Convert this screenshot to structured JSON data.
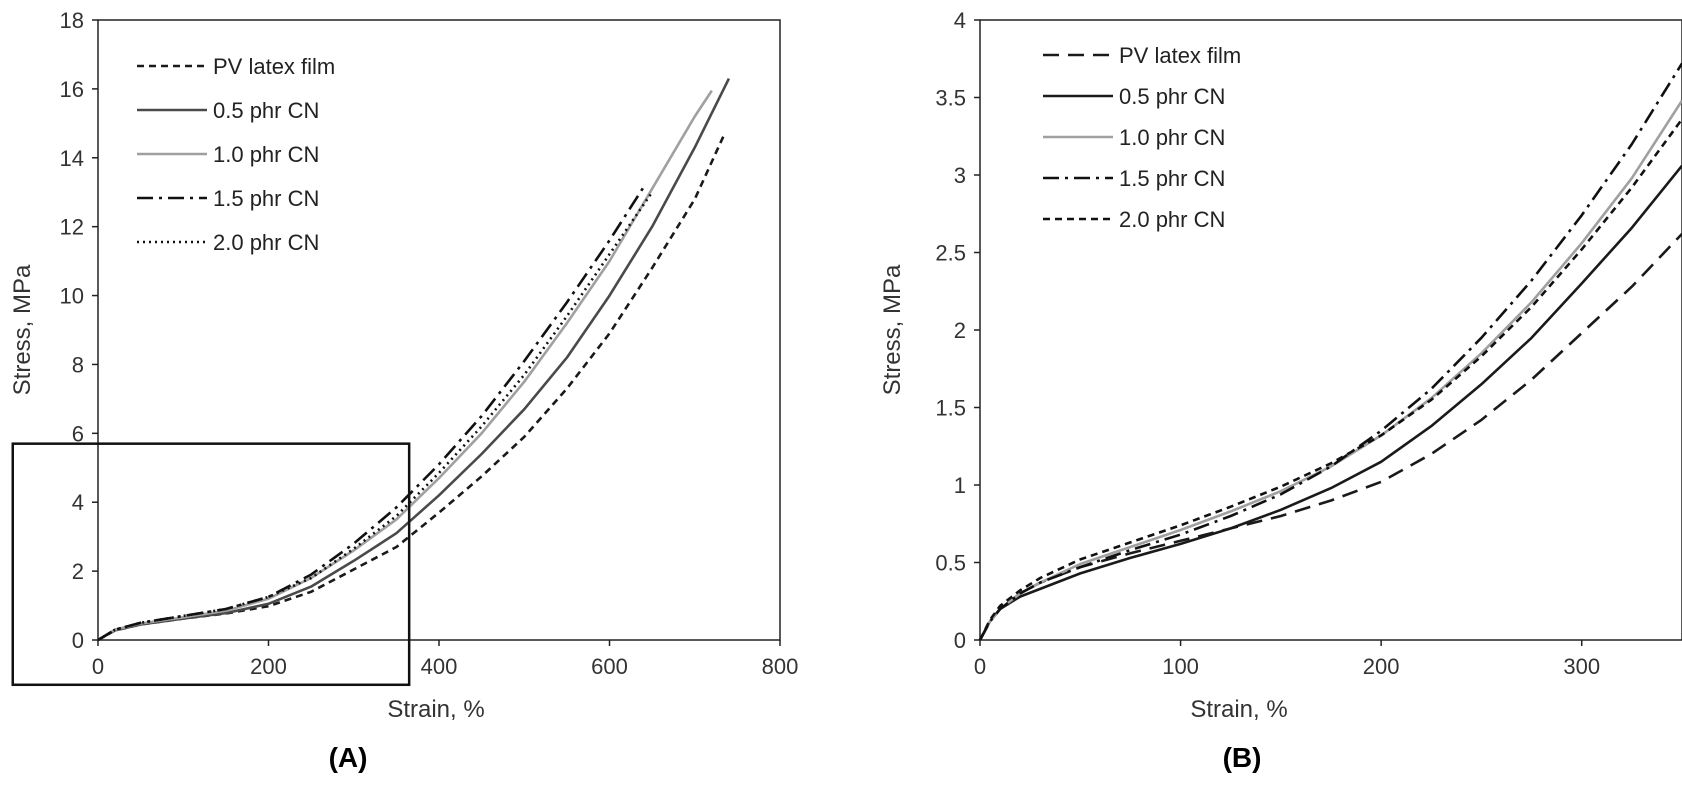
{
  "chart_data": [
    {
      "type": "line",
      "panel_label": "(A)",
      "xlabel": "Strain, %",
      "ylabel": "Stress, MPa",
      "xlim": [
        0,
        800
      ],
      "ylim": [
        0,
        18
      ],
      "xticks": [
        0,
        200,
        400,
        600,
        800
      ],
      "yticks": [
        0,
        2,
        4,
        6,
        8,
        10,
        12,
        14,
        16,
        18
      ],
      "grid": false,
      "legend_position": "top-left",
      "zoom_box": {
        "x_range": [
          -100,
          365
        ],
        "y_range": [
          -1.3,
          5.7
        ]
      },
      "series": [
        {
          "name": "PV latex film",
          "style": "short-dash",
          "color": "#1a1a1a",
          "points": [
            [
              0,
              0
            ],
            [
              20,
              0.28
            ],
            [
              50,
              0.45
            ],
            [
              100,
              0.62
            ],
            [
              150,
              0.77
            ],
            [
              200,
              0.98
            ],
            [
              250,
              1.4
            ],
            [
              300,
              2.05
            ],
            [
              350,
              2.7
            ],
            [
              400,
              3.7
            ],
            [
              450,
              4.75
            ],
            [
              500,
              5.9
            ],
            [
              550,
              7.3
            ],
            [
              600,
              8.9
            ],
            [
              650,
              10.8
            ],
            [
              700,
              12.8
            ],
            [
              735,
              14.7
            ]
          ]
        },
        {
          "name": "0.5 phr CN",
          "style": "solid",
          "color": "#4a4a4a",
          "points": [
            [
              0,
              0
            ],
            [
              20,
              0.28
            ],
            [
              50,
              0.45
            ],
            [
              100,
              0.62
            ],
            [
              150,
              0.78
            ],
            [
              200,
              1.05
            ],
            [
              250,
              1.55
            ],
            [
              300,
              2.3
            ],
            [
              350,
              3.1
            ],
            [
              400,
              4.2
            ],
            [
              450,
              5.4
            ],
            [
              500,
              6.7
            ],
            [
              550,
              8.2
            ],
            [
              600,
              10.0
            ],
            [
              650,
              12.0
            ],
            [
              700,
              14.3
            ],
            [
              740,
              16.3
            ]
          ]
        },
        {
          "name": "1.0 phr CN",
          "style": "solid",
          "color": "#a0a0a0",
          "points": [
            [
              0,
              0
            ],
            [
              20,
              0.3
            ],
            [
              50,
              0.48
            ],
            [
              100,
              0.66
            ],
            [
              150,
              0.85
            ],
            [
              200,
              1.2
            ],
            [
              250,
              1.8
            ],
            [
              300,
              2.6
            ],
            [
              350,
              3.5
            ],
            [
              400,
              4.7
            ],
            [
              450,
              6.0
            ],
            [
              500,
              7.5
            ],
            [
              550,
              9.2
            ],
            [
              600,
              11.0
            ],
            [
              650,
              13.1
            ],
            [
              700,
              15.2
            ],
            [
              720,
              15.95
            ]
          ]
        },
        {
          "name": "1.5 phr CN",
          "style": "dash-dot",
          "color": "#111111",
          "points": [
            [
              0,
              0
            ],
            [
              20,
              0.3
            ],
            [
              50,
              0.5
            ],
            [
              100,
              0.7
            ],
            [
              150,
              0.9
            ],
            [
              200,
              1.25
            ],
            [
              250,
              1.9
            ],
            [
              300,
              2.8
            ],
            [
              350,
              3.85
            ],
            [
              400,
              5.1
            ],
            [
              450,
              6.5
            ],
            [
              500,
              8.1
            ],
            [
              550,
              9.8
            ],
            [
              600,
              11.6
            ],
            [
              640,
              13.15
            ]
          ]
        },
        {
          "name": "2.0 phr CN",
          "style": "dotted",
          "color": "#111111",
          "points": [
            [
              0,
              0
            ],
            [
              20,
              0.3
            ],
            [
              50,
              0.5
            ],
            [
              100,
              0.7
            ],
            [
              150,
              0.9
            ],
            [
              200,
              1.25
            ],
            [
              250,
              1.8
            ],
            [
              300,
              2.65
            ],
            [
              350,
              3.6
            ],
            [
              400,
              4.85
            ],
            [
              450,
              6.2
            ],
            [
              500,
              7.7
            ],
            [
              550,
              9.4
            ],
            [
              600,
              11.2
            ],
            [
              650,
              13.0
            ]
          ]
        }
      ]
    },
    {
      "type": "line",
      "panel_label": "(B)",
      "xlabel": "Strain, %",
      "ylabel": "Stress, MPa",
      "xlim": [
        0,
        350
      ],
      "ylim": [
        0,
        4
      ],
      "xticks": [
        0,
        100,
        200,
        300
      ],
      "yticks": [
        0,
        0.5,
        1,
        1.5,
        2,
        2.5,
        3,
        3.5,
        4
      ],
      "grid": false,
      "legend_position": "top-left",
      "series": [
        {
          "name": "PV latex film",
          "style": "long-dash",
          "color": "#1a1a1a",
          "points": [
            [
              0,
              0
            ],
            [
              5,
              0.12
            ],
            [
              10,
              0.2
            ],
            [
              20,
              0.3
            ],
            [
              30,
              0.37
            ],
            [
              50,
              0.47
            ],
            [
              75,
              0.56
            ],
            [
              100,
              0.64
            ],
            [
              125,
              0.72
            ],
            [
              150,
              0.8
            ],
            [
              175,
              0.9
            ],
            [
              200,
              1.02
            ],
            [
              225,
              1.2
            ],
            [
              250,
              1.42
            ],
            [
              275,
              1.68
            ],
            [
              300,
              1.98
            ],
            [
              325,
              2.28
            ],
            [
              350,
              2.62
            ]
          ]
        },
        {
          "name": "0.5 phr CN",
          "style": "solid",
          "color": "#1a1a1a",
          "points": [
            [
              0,
              0
            ],
            [
              5,
              0.12
            ],
            [
              10,
              0.2
            ],
            [
              20,
              0.28
            ],
            [
              30,
              0.33
            ],
            [
              50,
              0.43
            ],
            [
              75,
              0.53
            ],
            [
              100,
              0.62
            ],
            [
              125,
              0.72
            ],
            [
              150,
              0.84
            ],
            [
              175,
              0.98
            ],
            [
              200,
              1.15
            ],
            [
              225,
              1.38
            ],
            [
              250,
              1.65
            ],
            [
              275,
              1.95
            ],
            [
              300,
              2.3
            ],
            [
              325,
              2.66
            ],
            [
              350,
              3.06
            ]
          ]
        },
        {
          "name": "1.0 phr CN",
          "style": "solid",
          "color": "#a0a0a0",
          "points": [
            [
              0,
              0
            ],
            [
              5,
              0.12
            ],
            [
              10,
              0.2
            ],
            [
              20,
              0.3
            ],
            [
              30,
              0.37
            ],
            [
              50,
              0.49
            ],
            [
              75,
              0.6
            ],
            [
              100,
              0.71
            ],
            [
              125,
              0.83
            ],
            [
              150,
              0.96
            ],
            [
              175,
              1.12
            ],
            [
              200,
              1.32
            ],
            [
              225,
              1.56
            ],
            [
              250,
              1.85
            ],
            [
              275,
              2.18
            ],
            [
              300,
              2.56
            ],
            [
              325,
              2.98
            ],
            [
              350,
              3.48
            ]
          ]
        },
        {
          "name": "1.5 phr CN",
          "style": "dash-dot",
          "color": "#111111",
          "points": [
            [
              0,
              0
            ],
            [
              5,
              0.12
            ],
            [
              10,
              0.2
            ],
            [
              20,
              0.3
            ],
            [
              30,
              0.37
            ],
            [
              50,
              0.47
            ],
            [
              75,
              0.58
            ],
            [
              100,
              0.68
            ],
            [
              125,
              0.8
            ],
            [
              150,
              0.94
            ],
            [
              175,
              1.12
            ],
            [
              200,
              1.35
            ],
            [
              225,
              1.62
            ],
            [
              250,
              1.95
            ],
            [
              275,
              2.32
            ],
            [
              300,
              2.74
            ],
            [
              325,
              3.2
            ],
            [
              350,
              3.72
            ]
          ]
        },
        {
          "name": "2.0 phr CN",
          "style": "short-dash",
          "color": "#111111",
          "points": [
            [
              0,
              0
            ],
            [
              5,
              0.13
            ],
            [
              10,
              0.22
            ],
            [
              20,
              0.32
            ],
            [
              30,
              0.4
            ],
            [
              50,
              0.52
            ],
            [
              75,
              0.63
            ],
            [
              100,
              0.74
            ],
            [
              125,
              0.86
            ],
            [
              150,
              0.99
            ],
            [
              175,
              1.14
            ],
            [
              200,
              1.32
            ],
            [
              225,
              1.55
            ],
            [
              250,
              1.83
            ],
            [
              275,
              2.15
            ],
            [
              300,
              2.52
            ],
            [
              325,
              2.92
            ],
            [
              350,
              3.36
            ]
          ]
        }
      ]
    }
  ]
}
